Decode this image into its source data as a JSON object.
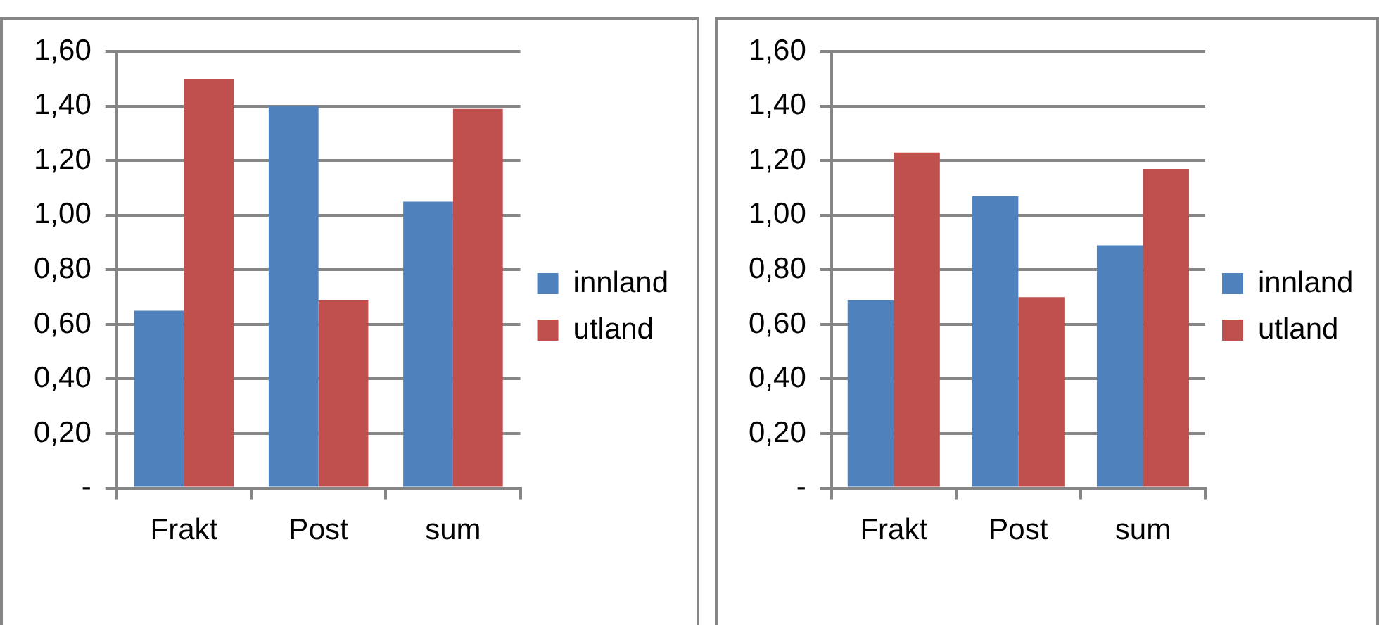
{
  "chart_data": [
    {
      "type": "bar",
      "categories": [
        "Frakt",
        "Post",
        "sum"
      ],
      "series": [
        {
          "name": "innland",
          "color": "#4f81bd",
          "values": [
            0.65,
            1.4,
            1.05
          ]
        },
        {
          "name": "utland",
          "color": "#c0504d",
          "values": [
            1.5,
            0.69,
            1.39
          ]
        }
      ],
      "ylim": [
        0,
        1.6
      ],
      "yticks": [
        {
          "value": 0,
          "label": "-"
        },
        {
          "value": 0.2,
          "label": "0,20"
        },
        {
          "value": 0.4,
          "label": "0,40"
        },
        {
          "value": 0.6,
          "label": "0,60"
        },
        {
          "value": 0.8,
          "label": "0,80"
        },
        {
          "value": 1.0,
          "label": "1,00"
        },
        {
          "value": 1.2,
          "label": "1,20"
        },
        {
          "value": 1.4,
          "label": "1,40"
        },
        {
          "value": 1.6,
          "label": "1,60"
        }
      ],
      "grid": "y",
      "legend": "right"
    },
    {
      "type": "bar",
      "categories": [
        "Frakt",
        "Post",
        "sum"
      ],
      "series": [
        {
          "name": "innland",
          "color": "#4f81bd",
          "values": [
            0.69,
            1.07,
            0.89
          ]
        },
        {
          "name": "utland",
          "color": "#c0504d",
          "values": [
            1.23,
            0.7,
            1.17
          ]
        }
      ],
      "ylim": [
        0,
        1.6
      ],
      "yticks": [
        {
          "value": 0,
          "label": "-"
        },
        {
          "value": 0.2,
          "label": "0,20"
        },
        {
          "value": 0.4,
          "label": "0,40"
        },
        {
          "value": 0.6,
          "label": "0,60"
        },
        {
          "value": 0.8,
          "label": "0,80"
        },
        {
          "value": 1.0,
          "label": "1,00"
        },
        {
          "value": 1.2,
          "label": "1,20"
        },
        {
          "value": 1.4,
          "label": "1,40"
        },
        {
          "value": 1.6,
          "label": "1,60"
        }
      ],
      "grid": "y",
      "legend": "right"
    }
  ]
}
